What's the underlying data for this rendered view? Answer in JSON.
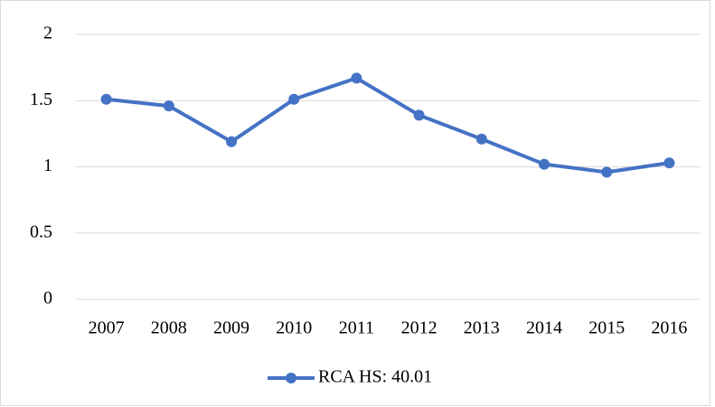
{
  "chart_data": {
    "type": "line",
    "categories": [
      "2007",
      "2008",
      "2009",
      "2010",
      "2011",
      "2012",
      "2013",
      "2014",
      "2015",
      "2016"
    ],
    "series": [
      {
        "name": "RCA HS: 40.01",
        "color": "#4472c4",
        "values": [
          1.51,
          1.46,
          1.19,
          1.51,
          1.67,
          1.39,
          1.21,
          1.02,
          0.96,
          1.03
        ]
      }
    ],
    "ylim": [
      0,
      2
    ],
    "yticks": [
      0,
      0.5,
      1,
      1.5,
      2
    ],
    "grid": true,
    "legend": "bottom"
  }
}
